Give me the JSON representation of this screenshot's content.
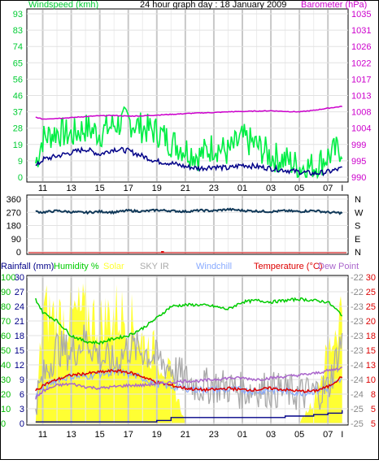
{
  "header": {
    "left_title": "Windspeed (kmh)",
    "center_title": "24 hour graph day : 18 January 2009",
    "right_title": "Barometer (hPa)"
  },
  "colors": {
    "wind": "#00ee44",
    "wind_avg": "#000088",
    "baro": "#cc00cc",
    "dir": "#103858",
    "gust_marker": "#dd0000",
    "rain": "#000088",
    "humidity": "#00cc00",
    "solar": "#ffff33",
    "sky_ir": "#aaaaaa",
    "windchill": "#88aaff",
    "temperature": "#dd0000",
    "dew_point": "#aa66cc",
    "grid": "#d8d8d8",
    "frame": "#000000"
  },
  "x_ticks": [
    "11",
    "13",
    "15",
    "17",
    "19",
    "21",
    "23",
    "01",
    "03",
    "05",
    "07",
    "I"
  ],
  "chart_data": [
    {
      "type": "line",
      "title": "24 hour graph day : 18 January 2009",
      "left_axis": {
        "label": "Windspeed (kmh)",
        "ticks": [
          "93",
          "83",
          "74",
          "65",
          "56",
          "46",
          "37",
          "28",
          "19",
          "9",
          "0"
        ],
        "range": [
          0,
          93
        ]
      },
      "right_axis": {
        "label": "Barometer (hPa)",
        "ticks": [
          "1035",
          "1031",
          "1026",
          "1022",
          "1017",
          "1013",
          "1008",
          "1004",
          "999",
          "995",
          "990"
        ],
        "range": [
          990,
          1035
        ]
      },
      "x": [
        10.5,
        11,
        12,
        13,
        14,
        15,
        16,
        17,
        18,
        19,
        20,
        21,
        22,
        23,
        24,
        25,
        26,
        27,
        28,
        29,
        30,
        31,
        32
      ],
      "series": [
        {
          "name": "Windspeed (kmh)",
          "axis": "left",
          "values": [
            8,
            22,
            26,
            24,
            28,
            25,
            30,
            32,
            28,
            26,
            20,
            16,
            12,
            18,
            14,
            22,
            18,
            12,
            10,
            6,
            6,
            12,
            17
          ]
        },
        {
          "axis": "left",
          "values": [
            6,
            10,
            12,
            14,
            16,
            13,
            16,
            15,
            12,
            9,
            8,
            6,
            5,
            6,
            5,
            7,
            6,
            5,
            4,
            3,
            2,
            3,
            5
          ]
        },
        {
          "name": "Barometer (hPa)",
          "axis": "right",
          "values": [
            1006.5,
            1006.0,
            1006.2,
            1006.4,
            1006.7,
            1006.9,
            1007.0,
            1006.8,
            1006.9,
            1007.1,
            1007.3,
            1007.5,
            1007.7,
            1007.8,
            1008.0,
            1008.1,
            1008.2,
            1008.3,
            1008.1,
            1008.0,
            1008.4,
            1009.0,
            1009.5
          ]
        }
      ]
    },
    {
      "type": "line",
      "left_axis": {
        "ticks": [
          "360",
          "270",
          "180",
          "90",
          "0"
        ],
        "range": [
          0,
          360
        ]
      },
      "right_axis": {
        "ticks": [
          "N",
          "W",
          "S",
          "E",
          "N"
        ]
      },
      "x": [
        10.5,
        11,
        12,
        13,
        14,
        15,
        16,
        17,
        18,
        19,
        20,
        21,
        22,
        23,
        24,
        25,
        26,
        27,
        28,
        29,
        30,
        31,
        32
      ],
      "series": [
        {
          "values": [
            275,
            270,
            280,
            272,
            268,
            275,
            270,
            282,
            276,
            285,
            280,
            275,
            283,
            280,
            290,
            282,
            278,
            275,
            280,
            275,
            282,
            270,
            265
          ]
        }
      ]
    },
    {
      "type": "line",
      "legend": [
        "Rainfall (mm)",
        "Humidity %",
        "Solar",
        "SKY IR",
        "Windchill",
        "Temperature (°C)",
        "Dew Point"
      ],
      "left_axis": {
        "ticks": [
          "100",
          "90",
          "80",
          "70",
          "60",
          "50",
          "40",
          "30",
          "20",
          "10",
          "0"
        ],
        "range": [
          0,
          100
        ]
      },
      "left_axis_2": {
        "ticks": [
          "30",
          "27",
          "24",
          "21",
          "18",
          "15",
          "12",
          "9",
          "6",
          "3",
          "0"
        ],
        "range": [
          0,
          30
        ]
      },
      "right_axis_sky": {
        "ticks": [
          "-22",
          "-22",
          "-23",
          "-23",
          "-23",
          "-23",
          "-24",
          "-24",
          "-24",
          "-25",
          "-25"
        ]
      },
      "right_axis_temp": {
        "ticks": [
          "30",
          "25",
          "25",
          "20",
          "18",
          "15",
          "13",
          "10",
          "8",
          "5",
          "5"
        ]
      },
      "x": [
        10.5,
        11,
        12,
        13,
        14,
        15,
        16,
        17,
        18,
        19,
        20,
        21,
        22,
        23,
        24,
        25,
        26,
        27,
        28,
        29,
        30,
        31,
        32
      ],
      "series": [
        {
          "name": "Humidity %",
          "values": [
            85,
            76,
            70,
            60,
            56,
            55,
            58,
            60,
            65,
            72,
            80,
            81,
            81,
            80,
            78,
            83,
            84,
            83,
            84,
            85,
            84,
            83,
            74
          ]
        },
        {
          "name": "Temperature (°C)",
          "values": [
            22,
            26,
            30,
            33,
            34,
            35,
            36,
            35,
            32,
            28,
            26,
            24,
            23,
            23,
            24,
            23,
            23,
            24,
            23,
            22,
            22,
            25,
            32
          ]
        },
        {
          "name": "Dew Point",
          "values": [
            17,
            22,
            26,
            27,
            25,
            24,
            25,
            26,
            26,
            27,
            28,
            29,
            29,
            30,
            31,
            31,
            30,
            31,
            32,
            33,
            34,
            36,
            38
          ]
        },
        {
          "name": "SKY IR",
          "values": [
            16,
            30,
            52,
            48,
            58,
            46,
            40,
            52,
            50,
            44,
            38,
            30,
            25,
            26,
            25,
            22,
            24,
            23,
            22,
            20,
            21,
            24,
            58
          ]
        },
        {
          "name": "Windchill",
          "values": [
            18,
            24,
            30,
            32,
            32,
            34,
            35,
            34,
            31,
            27,
            25,
            24,
            23,
            23,
            23,
            23,
            22,
            23,
            22,
            21,
            22,
            24,
            30
          ]
        },
        {
          "name": "Solar",
          "values": [
            0,
            95,
            90,
            90,
            95,
            85,
            95,
            90,
            70,
            60,
            40,
            0,
            0,
            0,
            0,
            0,
            0,
            0,
            0,
            0,
            20,
            60,
            100
          ]
        },
        {
          "name": "Rainfall (mm)",
          "values": [
            1,
            1,
            1,
            1,
            1,
            1,
            1,
            1,
            1,
            2,
            4,
            4,
            4,
            4,
            4,
            4,
            4,
            4,
            5,
            5,
            6,
            7,
            9
          ]
        }
      ]
    }
  ]
}
